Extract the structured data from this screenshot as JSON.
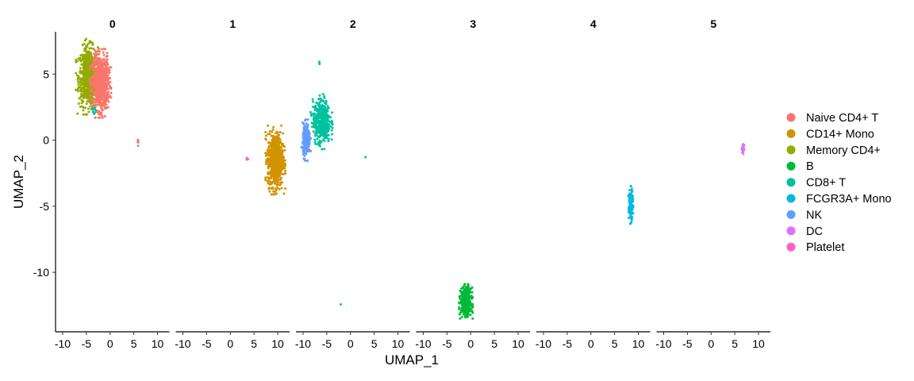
{
  "chart_data": {
    "type": "scatter",
    "title": "",
    "xlabel": "UMAP_1",
    "ylabel": "UMAP_2",
    "xlim": [
      -11.5,
      12.5
    ],
    "ylim": [
      -14.5,
      8.2
    ],
    "xticks": [
      -10,
      -5,
      0,
      5,
      10
    ],
    "xtick_labels": [
      "-10",
      "-5",
      "0",
      "5",
      "10"
    ],
    "yticks": [
      5,
      0,
      -5,
      -10
    ],
    "ytick_labels": [
      "5",
      "0",
      "-5",
      "-10"
    ],
    "grid": false,
    "legend_position": "right",
    "facets": [
      "0",
      "1",
      "2",
      "3",
      "4",
      "5"
    ],
    "series": [
      {
        "name": "Naive CD4+ T",
        "color": "#F8766D"
      },
      {
        "name": "CD14+ Mono",
        "color": "#D39200"
      },
      {
        "name": "Memory CD4+",
        "color": "#93AA00"
      },
      {
        "name": "B",
        "color": "#00BA38"
      },
      {
        "name": "CD8+ T",
        "color": "#00C19F"
      },
      {
        "name": "FCGR3A+ Mono",
        "color": "#00B9E3"
      },
      {
        "name": "NK",
        "color": "#619CFF"
      },
      {
        "name": "DC",
        "color": "#DB72FB"
      },
      {
        "name": "Platelet",
        "color": "#FF61C3"
      }
    ],
    "clusters": [
      {
        "facet": 0,
        "series": 2,
        "cx": -4.6,
        "cy": 4.8,
        "sx": 1.0,
        "sy": 1.1,
        "n": 650
      },
      {
        "facet": 0,
        "series": 0,
        "cx": -2.0,
        "cy": 4.3,
        "sx": 0.85,
        "sy": 1.0,
        "n": 800
      },
      {
        "facet": 0,
        "series": 4,
        "cx": -3.4,
        "cy": 2.4,
        "sx": 0.25,
        "sy": 0.3,
        "n": 10
      },
      {
        "facet": 0,
        "series": 0,
        "cx": 5.9,
        "cy": -0.2,
        "sx": 0.1,
        "sy": 0.15,
        "n": 6
      },
      {
        "facet": 1,
        "series": 1,
        "cx": 9.5,
        "cy": -1.5,
        "sx": 0.8,
        "sy": 1.0,
        "n": 750
      },
      {
        "facet": 1,
        "series": 8,
        "cx": 3.6,
        "cy": -1.4,
        "sx": 0.08,
        "sy": 0.08,
        "n": 4
      },
      {
        "facet": 2,
        "series": 4,
        "cx": -6.1,
        "cy": 1.4,
        "sx": 0.9,
        "sy": 0.8,
        "n": 450
      },
      {
        "facet": 2,
        "series": 6,
        "cx": -9.3,
        "cy": 0.0,
        "sx": 0.4,
        "sy": 0.6,
        "n": 180
      },
      {
        "facet": 2,
        "series": 4,
        "cx": -6.5,
        "cy": 5.8,
        "sx": 0.1,
        "sy": 0.1,
        "n": 3
      },
      {
        "facet": 2,
        "series": 4,
        "cx": 3.2,
        "cy": -1.3,
        "sx": 0.05,
        "sy": 0.05,
        "n": 1
      },
      {
        "facet": 2,
        "series": 4,
        "cx": -2.1,
        "cy": -12.5,
        "sx": 0.05,
        "sy": 0.05,
        "n": 1
      },
      {
        "facet": 3,
        "series": 3,
        "cx": -1.0,
        "cy": -12.2,
        "sx": 0.55,
        "sy": 0.5,
        "n": 500
      },
      {
        "facet": 4,
        "series": 5,
        "cx": 8.4,
        "cy": -4.9,
        "sx": 0.22,
        "sy": 0.55,
        "n": 160
      },
      {
        "facet": 5,
        "series": 7,
        "cx": 6.7,
        "cy": -0.6,
        "sx": 0.15,
        "sy": 0.18,
        "n": 25
      }
    ]
  }
}
